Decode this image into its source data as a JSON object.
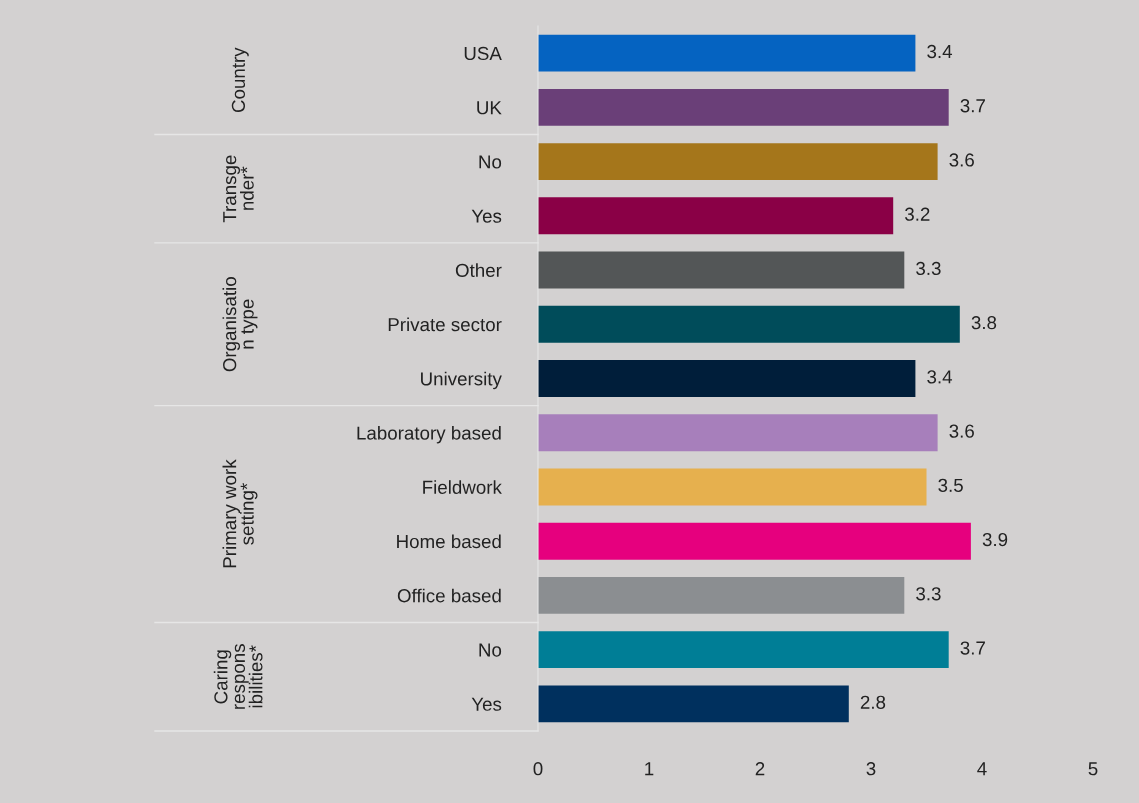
{
  "chart_data": {
    "type": "bar",
    "orientation": "horizontal",
    "categories": [
      "USA",
      "UK",
      "No",
      "Yes",
      "Other",
      "Private sector",
      "University",
      "Laboratory based",
      "Fieldwork",
      "Home based",
      "Office based",
      "No",
      "Yes"
    ],
    "values": [
      3.4,
      3.7,
      3.6,
      3.2,
      3.3,
      3.8,
      3.4,
      3.6,
      3.5,
      3.9,
      3.3,
      3.7,
      2.8
    ],
    "colors": [
      "#0563c1",
      "#6a3f78",
      "#a5761b",
      "#8a0046",
      "#535657",
      "#004c5a",
      "#001e3a",
      "#a77fbb",
      "#e6b04e",
      "#e6007e",
      "#8b8e91",
      "#007e96",
      "#00305e"
    ],
    "xlim": [
      0,
      5
    ],
    "xticks": [
      0,
      1,
      2,
      3,
      4,
      5
    ],
    "data_labels": true,
    "annotations": [
      "Country",
      "Transge\nnder*",
      "Organisatio\nn type",
      "Primary work\nsetting*",
      "Caring\nrespons\nibilities*"
    ]
  }
}
